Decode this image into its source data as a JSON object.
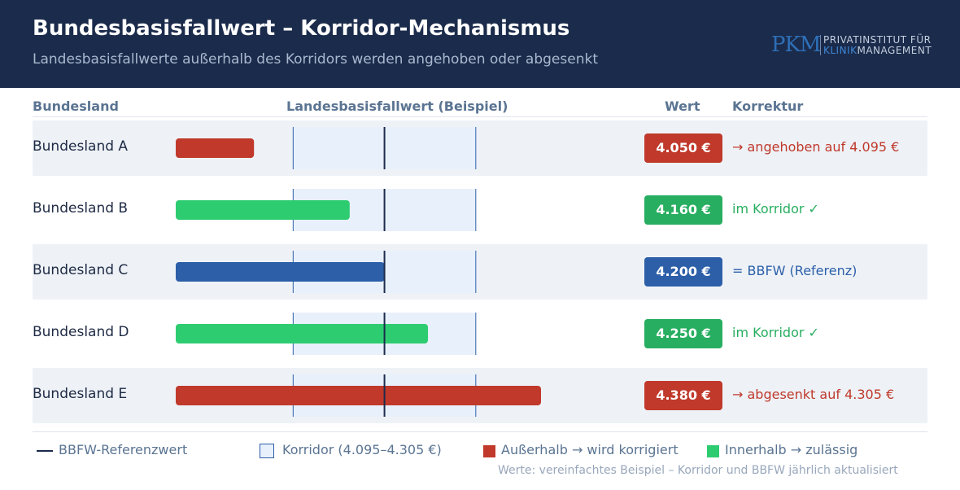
{
  "header": {
    "title": "Bundesbasisfallwert – Korridor-Mechanismus",
    "subtitle": "Landesbasisfallwerte außerhalb des Korridors werden angehoben oder abgesenkt",
    "logo": {
      "mark": "PKM",
      "line1": "PRIVATINSTITUT FÜR",
      "line2_a": "KLINIK",
      "line2_b": "MANAGEMENT"
    }
  },
  "columns": {
    "bundesland": "Bundesland",
    "chart": "Landesbasisfallwert (Beispiel)",
    "wert": "Wert",
    "korrektur": "Korrektur"
  },
  "colors": {
    "red": "#c0392b",
    "green": "#2ecc71",
    "green_text": "#27ae60",
    "blue": "#2c5fa8",
    "corridor_fill": "#e8f0fb",
    "corridor_line": "#2c5fa8",
    "reference": "#1b2b4b"
  },
  "chart_data": {
    "type": "bar",
    "orientation": "horizontal",
    "categories": [
      "Bundesland A",
      "Bundesland B",
      "Bundesland C",
      "Bundesland D",
      "Bundesland E"
    ],
    "values": [
      4050,
      4160,
      4200,
      4250,
      4380
    ],
    "value_labels": [
      "4.050 €",
      "4.160 €",
      "4.200 €",
      "4.250 €",
      "4.380 €"
    ],
    "status": [
      "below",
      "inside",
      "reference",
      "inside",
      "above"
    ],
    "corrections": [
      "→ angehoben auf 4.095 €",
      "im Korridor ✓",
      "= BBFW (Referenz)",
      "im Korridor ✓",
      "→ abgesenkt auf 4.305 €"
    ],
    "reference_value": 4200,
    "corridor": [
      4095,
      4305
    ],
    "xlim": [
      3960,
      4420
    ],
    "title": "Landesbasisfallwert (Beispiel)"
  },
  "legend": {
    "reference": "BBFW-Referenzwert",
    "corridor": "Korridor (4.095–4.305 €)",
    "outside": "Außerhalb → wird korrigiert",
    "inside": "Innerhalb → zulässig"
  },
  "note": "Werte: vereinfachtes Beispiel – Korridor und BBFW jährlich aktualisiert"
}
